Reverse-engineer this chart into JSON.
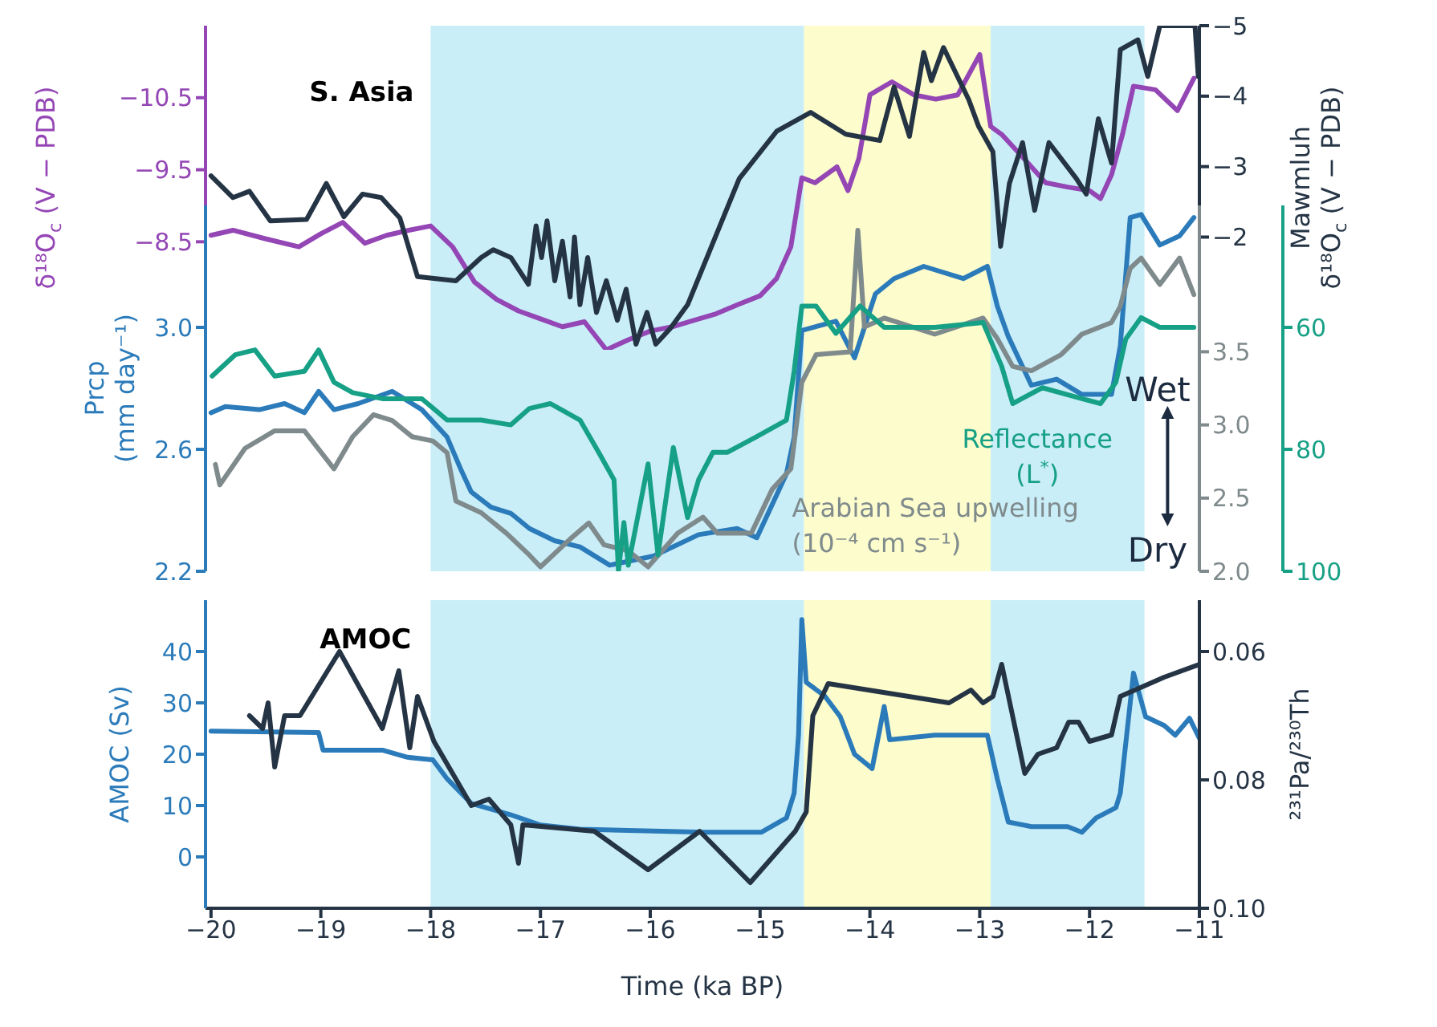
{
  "chart_data": [
    {
      "type": "line",
      "title": "S. Asia",
      "ylabel": "δ¹⁸O$_{c}$ (V − PDB)",
      "y2label": "Mawmluh δ¹⁸O$_{c}$ (V − PDB)",
      "tick_labels": "y",
      "xlim": [
        -20.05,
        -11
      ],
      "ylim": [
        -7.0,
        -11.5
      ],
      "yticks": [
        {
          "value": -8.5,
          "label": "−8.5"
        },
        {
          "value": -9.5,
          "label": "−9.5"
        },
        {
          "value": -10.5,
          "label": "−10.5"
        }
      ],
      "y2lim": [
        -0.4,
        -5
      ],
      "y2ticks": [
        {
          "value": -2,
          "label": "−2"
        },
        {
          "value": -3,
          "label": "−3"
        },
        {
          "value": -4,
          "label": "−4"
        },
        {
          "value": -5,
          "label": "−5"
        }
      ],
      "bands": [
        {
          "axis": "x",
          "from": -18,
          "to": -14.6,
          "color": "#c9eef8"
        },
        {
          "axis": "x",
          "from": -14.6,
          "to": -12.9,
          "color": "#fdfccc"
        },
        {
          "axis": "x",
          "from": -12.9,
          "to": -11.5,
          "color": "#c9eef8"
        }
      ],
      "series": [
        {
          "axis": "y",
          "color": "#9446b5",
          "x": [
            -20,
            -19.8,
            -19.5,
            -19.2,
            -19.0,
            -18.8,
            -18.6,
            -18.4,
            -18.2,
            -18.0,
            -17.8,
            -17.6,
            -17.4,
            -17.2,
            -17.0,
            -16.8,
            -16.6,
            -16.4,
            -16.2,
            -16.0,
            -15.8,
            -15.6,
            -15.4,
            -15.2,
            -15.0,
            -14.85,
            -14.72,
            -14.62,
            -14.5,
            -14.3,
            -14.2,
            -14.1,
            -14.0,
            -13.8,
            -13.6,
            -13.4,
            -13.2,
            -13.0,
            -12.9,
            -12.8,
            -12.6,
            -12.4,
            -12.2,
            -12.0,
            -11.9,
            -11.8,
            -11.7,
            -11.6,
            -11.4,
            -11.2,
            -11.05
          ],
          "values": [
            -8.59,
            -8.66,
            -8.54,
            -8.43,
            -8.61,
            -8.77,
            -8.48,
            -8.59,
            -8.66,
            -8.72,
            -8.43,
            -7.94,
            -7.7,
            -7.54,
            -7.43,
            -7.32,
            -7.39,
            -7.0,
            -7.14,
            -7.26,
            -7.32,
            -7.41,
            -7.5,
            -7.63,
            -7.75,
            -7.99,
            -8.43,
            -9.39,
            -9.32,
            -9.54,
            -9.21,
            -9.66,
            -10.54,
            -10.72,
            -10.54,
            -10.48,
            -10.54,
            -11.1,
            -10.1,
            -9.99,
            -9.66,
            -9.32,
            -9.26,
            -9.21,
            -9.1,
            -9.43,
            -9.99,
            -10.66,
            -10.61,
            -10.32,
            -10.77
          ]
        },
        {
          "axis": "y2",
          "color": "#253445",
          "x": [
            -20,
            -19.8,
            -19.65,
            -19.46,
            -19.13,
            -18.95,
            -18.79,
            -18.62,
            -18.45,
            -18.28,
            -18.12,
            -17.77,
            -17.54,
            -17.43,
            -17.27,
            -17.11,
            -17.04,
            -16.99,
            -16.94,
            -16.87,
            -16.8,
            -16.73,
            -16.69,
            -16.64,
            -16.57,
            -16.49,
            -16.4,
            -16.3,
            -16.22,
            -16.13,
            -16.03,
            -15.95,
            -15.82,
            -15.66,
            -15.19,
            -14.85,
            -14.54,
            -14.22,
            -13.91,
            -13.78,
            -13.64,
            -13.51,
            -13.44,
            -13.33,
            -13.1,
            -13.01,
            -12.88,
            -12.81,
            -12.73,
            -12.61,
            -12.5,
            -12.37,
            -12.12,
            -12.03,
            -11.92,
            -11.8,
            -11.72,
            -11.56,
            -11.47,
            -11.36,
            -11.04,
            -11.01
          ],
          "values": [
            -2.87,
            -2.56,
            -2.65,
            -2.23,
            -2.25,
            -2.76,
            -2.29,
            -2.61,
            -2.56,
            -2.27,
            -1.44,
            -1.38,
            -1.71,
            -1.82,
            -1.71,
            -1.33,
            -2.16,
            -1.71,
            -2.23,
            -1.38,
            -1.94,
            -1.15,
            -2.0,
            -1.04,
            -1.71,
            -0.93,
            -1.38,
            -0.82,
            -1.26,
            -0.48,
            -0.93,
            -0.48,
            -0.7,
            -1.04,
            -2.83,
            -3.5,
            -3.77,
            -3.46,
            -3.37,
            -4.13,
            -3.43,
            -4.62,
            -4.22,
            -4.69,
            -3.95,
            -3.57,
            -3.21,
            -1.87,
            -2.76,
            -3.34,
            -2.38,
            -3.34,
            -2.83,
            -2.61,
            -3.68,
            -3.05,
            -4.66,
            -4.8,
            -4.28,
            -5,
            -5,
            -4.28
          ]
        }
      ]
    },
    {
      "type": "line",
      "ylabel": "Prcp (mm day⁻¹)",
      "tick_labels": "y",
      "xlim": [
        -20.05,
        -11
      ],
      "ylim": [
        2.2,
        3.4
      ],
      "yticks": [
        {
          "value": 2.2,
          "label": "2.2"
        },
        {
          "value": 2.6,
          "label": "2.6"
        },
        {
          "value": 3.0,
          "label": "3.0"
        }
      ],
      "y2lim": [
        2.0,
        4.5
      ],
      "y2ticks": [
        {
          "value": 2.0,
          "label": "2.0"
        },
        {
          "value": 2.5,
          "label": "2.5"
        },
        {
          "value": 3.0,
          "label": "3.0"
        },
        {
          "value": 3.5,
          "label": "3.5"
        }
      ],
      "y3lim": [
        100,
        40
      ],
      "y3ticks": [
        {
          "value": 60,
          "label": "60"
        },
        {
          "value": 80,
          "label": "80"
        },
        {
          "value": 100,
          "label": "100"
        }
      ],
      "annotations": [
        "Wet",
        "Dry"
      ],
      "series": [
        {
          "axis": "y",
          "color": "#2b7bba",
          "x": [
            -20,
            -19.87,
            -19.56,
            -19.33,
            -19.15,
            -19.02,
            -18.88,
            -18.66,
            -18.35,
            -18.08,
            -17.85,
            -17.72,
            -17.63,
            -17.45,
            -17.27,
            -17.1,
            -16.87,
            -16.64,
            -16.37,
            -15.97,
            -15.56,
            -15.21,
            -15.03,
            -14.76,
            -14.69,
            -14.62,
            -14.31,
            -14.14,
            -13.95,
            -13.78,
            -13.51,
            -13.15,
            -12.93,
            -12.84,
            -12.74,
            -12.53,
            -12.3,
            -12.07,
            -11.8,
            -11.72,
            -11.63,
            -11.53,
            -11.36,
            -11.18,
            -11.05
          ],
          "values": [
            2.72,
            2.74,
            2.73,
            2.75,
            2.72,
            2.79,
            2.73,
            2.75,
            2.79,
            2.73,
            2.64,
            2.53,
            2.46,
            2.41,
            2.39,
            2.34,
            2.3,
            2.28,
            2.22,
            2.25,
            2.32,
            2.34,
            2.31,
            2.52,
            2.64,
            2.99,
            3.02,
            2.9,
            3.11,
            3.16,
            3.2,
            3.16,
            3.2,
            3.07,
            2.97,
            2.81,
            2.83,
            2.78,
            2.78,
            2.94,
            3.36,
            3.37,
            3.27,
            3.3,
            3.36
          ]
        },
        {
          "axis": "y2",
          "name": "Arabian Sea upwelling (10⁻⁴ cm s⁻¹)",
          "color": "#7f8a8c",
          "x": [
            -19.96,
            -19.92,
            -19.69,
            -19.42,
            -19.15,
            -18.88,
            -18.71,
            -18.52,
            -18.35,
            -18.17,
            -17.98,
            -17.85,
            -17.77,
            -17.54,
            -17.31,
            -17.1,
            -17.0,
            -16.73,
            -16.56,
            -16.42,
            -16.2,
            -16.02,
            -15.75,
            -15.52,
            -15.39,
            -15.08,
            -14.89,
            -14.72,
            -14.62,
            -14.49,
            -14.18,
            -14.11,
            -14.05,
            -13.87,
            -13.41,
            -12.97,
            -12.84,
            -12.7,
            -12.53,
            -12.26,
            -12.07,
            -11.8,
            -11.72,
            -11.63,
            -11.53,
            -11.36,
            -11.18,
            -11.05
          ],
          "values": [
            2.73,
            2.59,
            2.84,
            2.96,
            2.96,
            2.7,
            2.92,
            3.07,
            3.03,
            2.92,
            2.89,
            2.81,
            2.48,
            2.4,
            2.26,
            2.11,
            2.03,
            2.22,
            2.33,
            2.18,
            2.14,
            2.03,
            2.26,
            2.37,
            2.26,
            2.26,
            2.56,
            2.7,
            3.29,
            3.48,
            3.5,
            4.33,
            3.67,
            3.73,
            3.62,
            3.73,
            3.59,
            3.4,
            3.37,
            3.48,
            3.62,
            3.7,
            3.81,
            4.07,
            4.14,
            3.96,
            4.14,
            3.89
          ]
        },
        {
          "axis": "y3",
          "name": "Reflectance (L$^{*}$)",
          "color": "#16a085",
          "x": [
            -19.99,
            -19.78,
            -19.6,
            -19.42,
            -19.15,
            -19.02,
            -18.88,
            -18.71,
            -18.44,
            -18.08,
            -17.85,
            -17.54,
            -17.27,
            -17.1,
            -16.91,
            -16.64,
            -16.47,
            -16.33,
            -16.29,
            -16.24,
            -16.2,
            -16.02,
            -15.93,
            -15.79,
            -15.66,
            -15.56,
            -15.43,
            -15.3,
            -15.03,
            -14.76,
            -14.69,
            -14.62,
            -14.49,
            -14.31,
            -14.09,
            -13.87,
            -13.41,
            -12.97,
            -12.8,
            -12.7,
            -12.43,
            -12.07,
            -11.9,
            -11.76,
            -11.67,
            -11.53,
            -11.36,
            -11.05
          ],
          "values": [
            68,
            64.5,
            63.7,
            68,
            67.2,
            63.7,
            69,
            70.7,
            71.7,
            71.7,
            75.2,
            75.2,
            76,
            73.3,
            72.5,
            75.2,
            80.5,
            85,
            100,
            92,
            99,
            82.4,
            97.3,
            79.7,
            91.2,
            85,
            80.5,
            80.5,
            77.9,
            75.2,
            67.2,
            56.5,
            56.5,
            61,
            56.5,
            60,
            60,
            59.2,
            66.4,
            72.5,
            69.9,
            71.7,
            72.5,
            69,
            61.9,
            58.4,
            60,
            60
          ]
        }
      ]
    },
    {
      "type": "line",
      "title": "AMOC",
      "xlabel": "Time (ka BP)",
      "ylabel": "AMOC (Sv)",
      "y2label": "²³¹Pa/²³⁰Th",
      "xlim": [
        -20.05,
        -11
      ],
      "xticks": [
        {
          "value": -20,
          "label": "−20"
        },
        {
          "value": -19,
          "label": "−19"
        },
        {
          "value": -18,
          "label": "−18"
        },
        {
          "value": -17,
          "label": "−17"
        },
        {
          "value": -16,
          "label": "−16"
        },
        {
          "value": -15,
          "label": "−15"
        },
        {
          "value": -14,
          "label": "−14"
        },
        {
          "value": -13,
          "label": "−13"
        },
        {
          "value": -12,
          "label": "−12"
        },
        {
          "value": -11,
          "label": "−11"
        }
      ],
      "ylim": [
        -10,
        50
      ],
      "yticks": [
        0,
        10,
        20,
        30,
        40
      ],
      "y2lim": [
        0.1,
        0.052
      ],
      "y2ticks": [
        {
          "value": 0.06,
          "label": "0.06"
        },
        {
          "value": 0.08,
          "label": "0.08"
        },
        {
          "value": 0.1,
          "label": "0.10"
        }
      ],
      "bands": [
        {
          "axis": "x",
          "from": -18,
          "to": -14.6,
          "color": "#c9eef8"
        },
        {
          "axis": "x",
          "from": -14.6,
          "to": -12.9,
          "color": "#fdfccc"
        },
        {
          "axis": "x",
          "from": -12.9,
          "to": -11.5,
          "color": "#c9eef8"
        }
      ],
      "series": [
        {
          "axis": "y",
          "color": "#2b7bba",
          "x": [
            -20,
            -19.02,
            -18.98,
            -18.44,
            -18.21,
            -17.98,
            -17.85,
            -17.63,
            -17.27,
            -17.0,
            -16.64,
            -15.52,
            -14.99,
            -14.76,
            -14.69,
            -14.65,
            -14.62,
            -14.58,
            -14.41,
            -14.27,
            -14.14,
            -13.98,
            -13.87,
            -13.82,
            -13.41,
            -12.93,
            -12.84,
            -12.74,
            -12.53,
            -12.2,
            -12.07,
            -11.94,
            -11.76,
            -11.72,
            -11.6,
            -11.49,
            -11.32,
            -11.22,
            -11.09,
            -11.0
          ],
          "values": [
            24.5,
            24.2,
            20.8,
            20.8,
            19.4,
            18.9,
            15.2,
            10.4,
            8.2,
            6.2,
            5.4,
            4.8,
            4.8,
            7.6,
            12.4,
            23.7,
            46.2,
            34,
            31.3,
            27.3,
            20,
            17.2,
            29.3,
            22.8,
            23.7,
            23.7,
            15.2,
            6.8,
            5.9,
            5.9,
            4.8,
            7.6,
            9.6,
            12.4,
            35.8,
            27.3,
            25.6,
            23.7,
            27,
            23.1
          ]
        },
        {
          "axis": "y2",
          "color": "#253445",
          "x": [
            -19.65,
            -19.53,
            -19.48,
            -19.42,
            -19.33,
            -19.19,
            -18.83,
            -18.44,
            -18.29,
            -18.19,
            -18.12,
            -17.97,
            -17.63,
            -17.47,
            -17.27,
            -17.2,
            -17.16,
            -16.51,
            -16.02,
            -15.55,
            -15.09,
            -14.68,
            -14.58,
            -14.52,
            -14.38,
            -13.28,
            -13.08,
            -12.97,
            -12.88,
            -12.8,
            -12.59,
            -12.47,
            -12.3,
            -12.19,
            -12.1,
            -12.0,
            -11.8,
            -11.72,
            -11.32,
            -11.0
          ],
          "values": [
            0.07,
            0.072,
            0.068,
            0.078,
            0.07,
            0.07,
            0.06,
            0.072,
            0.063,
            0.075,
            0.067,
            0.074,
            0.084,
            0.083,
            0.087,
            0.093,
            0.087,
            0.088,
            0.094,
            0.088,
            0.096,
            0.088,
            0.085,
            0.07,
            0.065,
            0.068,
            0.066,
            0.068,
            0.067,
            0.062,
            0.079,
            0.076,
            0.075,
            0.071,
            0.071,
            0.074,
            0.073,
            0.067,
            0.064,
            0.062
          ]
        }
      ]
    }
  ]
}
